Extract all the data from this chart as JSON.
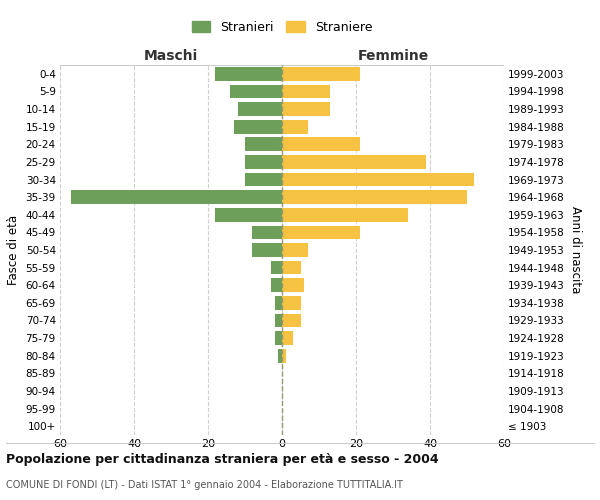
{
  "age_groups": [
    "100+",
    "95-99",
    "90-94",
    "85-89",
    "80-84",
    "75-79",
    "70-74",
    "65-69",
    "60-64",
    "55-59",
    "50-54",
    "45-49",
    "40-44",
    "35-39",
    "30-34",
    "25-29",
    "20-24",
    "15-19",
    "10-14",
    "5-9",
    "0-4"
  ],
  "birth_years": [
    "≤ 1903",
    "1904-1908",
    "1909-1913",
    "1914-1918",
    "1919-1923",
    "1924-1928",
    "1929-1933",
    "1934-1938",
    "1939-1943",
    "1944-1948",
    "1949-1953",
    "1954-1958",
    "1959-1963",
    "1964-1968",
    "1969-1973",
    "1974-1978",
    "1979-1983",
    "1984-1988",
    "1989-1993",
    "1994-1998",
    "1999-2003"
  ],
  "maschi": [
    0,
    0,
    0,
    0,
    1,
    2,
    2,
    2,
    3,
    3,
    8,
    8,
    18,
    57,
    10,
    10,
    10,
    13,
    12,
    14,
    18
  ],
  "femmine": [
    0,
    0,
    0,
    0,
    1,
    3,
    5,
    5,
    6,
    5,
    7,
    21,
    34,
    50,
    52,
    39,
    21,
    7,
    13,
    13,
    21
  ],
  "male_color": "#6d9e5a",
  "female_color": "#f5c242",
  "title": "Popolazione per cittadinanza straniera per età e sesso - 2004",
  "subtitle": "COMUNE DI FONDI (LT) - Dati ISTAT 1° gennaio 2004 - Elaborazione TUTTITALIA.IT",
  "xlabel_left": "Maschi",
  "xlabel_right": "Femmine",
  "ylabel_left": "Fasce di età",
  "ylabel_right": "Anni di nascita",
  "legend_male": "Stranieri",
  "legend_female": "Straniere",
  "xlim": 60,
  "background_color": "#ffffff",
  "grid_color": "#d0d0d0",
  "border_color": "#cccccc"
}
